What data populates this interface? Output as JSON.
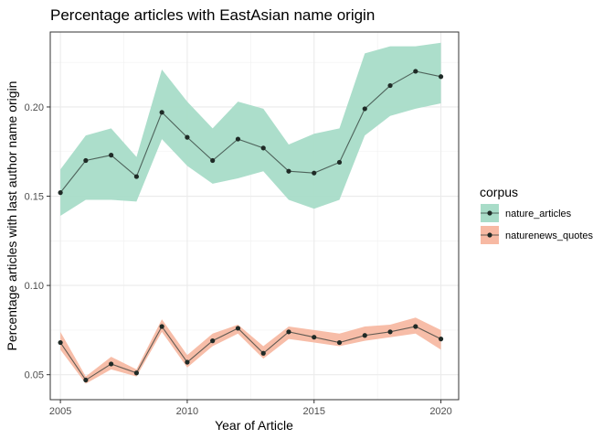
{
  "chart_data": {
    "type": "line",
    "title": "Percentage articles with EastAsian name origin",
    "xlabel": "Year of Article",
    "ylabel": "Percentage articles with last author name origin",
    "xlim": [
      2004.6,
      2020.7
    ],
    "ylim": [
      0.036,
      0.242
    ],
    "x_ticks": [
      2005,
      2010,
      2015,
      2020
    ],
    "y_ticks": [
      0.05,
      0.1,
      0.15,
      0.2
    ],
    "y_tick_labels": [
      "0.05",
      "0.10",
      "0.15",
      "0.20"
    ],
    "grid": true,
    "legend": {
      "title": "corpus",
      "position": "right"
    },
    "x": [
      2005,
      2006,
      2007,
      2008,
      2009,
      2010,
      2011,
      2012,
      2013,
      2014,
      2015,
      2016,
      2017,
      2018,
      2019,
      2020
    ],
    "series": [
      {
        "name": "nature_articles",
        "color": "#1b9e77",
        "band_color": "#a8dcc8",
        "values": [
          0.152,
          0.17,
          0.173,
          0.161,
          0.197,
          0.183,
          0.17,
          0.182,
          0.177,
          0.164,
          0.163,
          0.169,
          0.199,
          0.212,
          0.22,
          0.217
        ],
        "lower": [
          0.139,
          0.148,
          0.148,
          0.147,
          0.182,
          0.167,
          0.157,
          0.16,
          0.164,
          0.148,
          0.143,
          0.148,
          0.184,
          0.195,
          0.199,
          0.202
        ],
        "upper": [
          0.165,
          0.184,
          0.188,
          0.172,
          0.221,
          0.203,
          0.188,
          0.203,
          0.199,
          0.179,
          0.185,
          0.188,
          0.23,
          0.234,
          0.234,
          0.236
        ]
      },
      {
        "name": "naturenews_quotes",
        "color": "#d95f02",
        "band_color": "#f7b9a3",
        "values": [
          0.068,
          0.047,
          0.056,
          0.051,
          0.077,
          0.057,
          0.069,
          0.076,
          0.062,
          0.074,
          0.071,
          0.068,
          0.072,
          0.074,
          0.077,
          0.07
        ],
        "lower": [
          0.064,
          0.045,
          0.053,
          0.049,
          0.074,
          0.054,
          0.066,
          0.073,
          0.059,
          0.07,
          0.068,
          0.066,
          0.069,
          0.071,
          0.073,
          0.064
        ],
        "upper": [
          0.074,
          0.049,
          0.06,
          0.053,
          0.081,
          0.061,
          0.073,
          0.078,
          0.066,
          0.077,
          0.075,
          0.073,
          0.077,
          0.078,
          0.082,
          0.075
        ]
      }
    ]
  }
}
